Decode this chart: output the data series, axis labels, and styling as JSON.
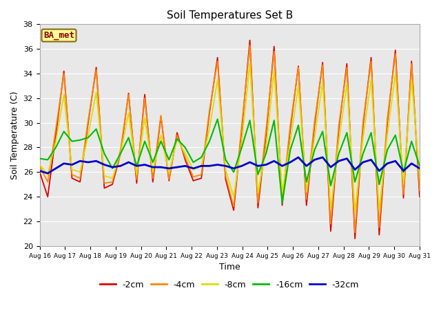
{
  "title": "Soil Temperatures Set B",
  "xlabel": "Time",
  "ylabel": "Soil Temperature (C)",
  "ylim": [
    20,
    38
  ],
  "annotation": "BA_met",
  "legend_labels": [
    "-2cm",
    "-4cm",
    "-8cm",
    "-16cm",
    "-32cm"
  ],
  "legend_colors": [
    "#dd0000",
    "#ff8800",
    "#dddd00",
    "#00bb00",
    "#0000cc"
  ],
  "tick_labels": [
    "Aug 16",
    "Aug 17",
    "Aug 18",
    "Aug 19",
    "Aug 20",
    "Aug 21",
    "Aug 22",
    "Aug 23",
    "Aug 24",
    "Aug 25",
    "Aug 26",
    "Aug 27",
    "Aug 28",
    "Aug 29",
    "Aug 30",
    "Aug 31"
  ],
  "data_2cm": [
    26.0,
    24.0,
    29.0,
    34.2,
    25.5,
    25.2,
    30.0,
    34.5,
    24.7,
    25.0,
    27.5,
    32.4,
    25.1,
    32.3,
    25.2,
    30.5,
    25.3,
    29.2,
    27.0,
    25.3,
    25.5,
    30.8,
    35.3,
    25.4,
    22.9,
    29.5,
    36.7,
    23.1,
    29.0,
    36.2,
    23.3,
    29.5,
    34.6,
    23.3,
    29.8,
    34.9,
    21.2,
    29.5,
    34.8,
    20.6,
    29.8,
    35.3,
    20.9,
    30.0,
    35.9,
    23.9,
    35.0,
    24.0
  ],
  "data_4cm": [
    26.5,
    25.2,
    29.5,
    34.0,
    25.8,
    25.5,
    30.2,
    34.3,
    25.1,
    25.2,
    27.8,
    32.3,
    25.4,
    32.0,
    25.5,
    30.6,
    25.4,
    29.0,
    27.2,
    25.6,
    25.8,
    31.0,
    35.0,
    25.7,
    23.2,
    29.8,
    36.3,
    23.5,
    29.4,
    35.8,
    23.7,
    29.8,
    34.5,
    23.8,
    30.1,
    34.7,
    21.8,
    29.8,
    34.5,
    21.1,
    30.1,
    35.0,
    21.5,
    30.3,
    35.6,
    24.2,
    34.8,
    24.5
  ],
  "data_8cm": [
    26.6,
    25.8,
    28.5,
    32.3,
    26.2,
    26.0,
    29.0,
    32.5,
    25.7,
    25.5,
    27.5,
    30.8,
    25.8,
    30.4,
    26.0,
    29.0,
    25.9,
    28.7,
    27.5,
    26.2,
    26.5,
    29.5,
    33.5,
    26.2,
    24.0,
    28.5,
    34.8,
    24.3,
    28.0,
    34.2,
    24.3,
    28.5,
    33.0,
    24.4,
    28.8,
    33.3,
    23.0,
    28.5,
    33.2,
    22.8,
    28.8,
    33.5,
    22.9,
    29.0,
    34.0,
    25.0,
    33.5,
    25.5
  ],
  "data_16cm": [
    27.1,
    27.0,
    28.0,
    29.3,
    28.5,
    28.6,
    28.8,
    29.5,
    27.5,
    26.3,
    27.5,
    28.8,
    26.5,
    28.5,
    26.8,
    28.5,
    27.0,
    28.7,
    28.0,
    26.8,
    27.2,
    28.5,
    30.3,
    27.0,
    26.0,
    28.0,
    30.2,
    25.8,
    27.5,
    30.2,
    23.5,
    27.8,
    29.8,
    25.2,
    27.8,
    29.3,
    24.9,
    27.5,
    29.2,
    25.2,
    27.5,
    29.2,
    25.0,
    27.8,
    29.0,
    26.0,
    28.5,
    26.5
  ],
  "data_32cm": [
    26.1,
    25.9,
    26.3,
    26.7,
    26.6,
    26.9,
    26.8,
    26.9,
    26.6,
    26.4,
    26.5,
    26.8,
    26.5,
    26.6,
    26.4,
    26.4,
    26.3,
    26.4,
    26.5,
    26.3,
    26.5,
    26.5,
    26.6,
    26.5,
    26.3,
    26.5,
    26.8,
    26.5,
    26.6,
    26.9,
    26.5,
    26.8,
    27.2,
    26.5,
    27.0,
    27.2,
    26.4,
    26.9,
    27.1,
    26.2,
    26.8,
    27.0,
    26.1,
    26.7,
    26.9,
    26.1,
    26.7,
    26.3
  ]
}
